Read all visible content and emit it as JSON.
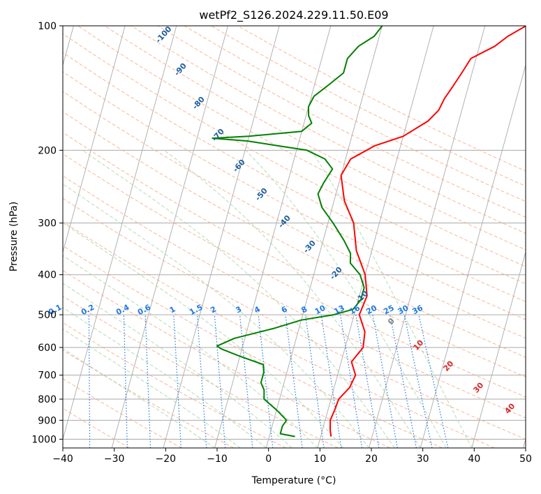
{
  "chart_data": {
    "type": "line",
    "title": "wetPf2_S126.2024.229.11.50.E09",
    "xlabel": "Temperature (°C)",
    "ylabel": "Pressure (hPa)",
    "xlim": [
      -40,
      50
    ],
    "ylim": [
      1050,
      100
    ],
    "y_scale": "log",
    "grid": true,
    "x_ticks": [
      -40,
      -30,
      -20,
      -10,
      0,
      10,
      20,
      30,
      40,
      50
    ],
    "x_tick_labels": [
      "−40",
      "−30",
      "−20",
      "−10",
      "0",
      "10",
      "20",
      "30",
      "40",
      "50"
    ],
    "y_ticks": [
      100,
      200,
      300,
      400,
      500,
      600,
      700,
      800,
      900,
      1000
    ],
    "y_tick_labels": [
      "100",
      "200",
      "300",
      "400",
      "500",
      "600",
      "700",
      "800",
      "900",
      "1000"
    ],
    "series": [
      {
        "color": "#ff0000",
        "points": [
          [
            12,
            985
          ],
          [
            11.5,
            950
          ],
          [
            11,
            900
          ],
          [
            11.3,
            850
          ],
          [
            11.5,
            800
          ],
          [
            13,
            750
          ],
          [
            13.5,
            700
          ],
          [
            12,
            650
          ],
          [
            13.5,
            600
          ],
          [
            13,
            550
          ],
          [
            11,
            500
          ],
          [
            11.5,
            450
          ],
          [
            10,
            400
          ],
          [
            7,
            350
          ],
          [
            5,
            300
          ],
          [
            2,
            265
          ],
          [
            0,
            230
          ],
          [
            1,
            210
          ],
          [
            5,
            195
          ],
          [
            10,
            185
          ],
          [
            14,
            170
          ],
          [
            15.5,
            160
          ],
          [
            16,
            150
          ],
          [
            17,
            140
          ],
          [
            18,
            130
          ],
          [
            19,
            120
          ],
          [
            23,
            112
          ],
          [
            25,
            106
          ],
          [
            28,
            100
          ]
        ]
      },
      {
        "color": "#008000",
        "points": [
          [
            5,
            985
          ],
          [
            2,
            970
          ],
          [
            2,
            930
          ],
          [
            2.5,
            900
          ],
          [
            0,
            850
          ],
          [
            -3,
            800
          ],
          [
            -3.5,
            760
          ],
          [
            -4.5,
            730
          ],
          [
            -4.5,
            690
          ],
          [
            -5,
            660
          ],
          [
            -10,
            630
          ],
          [
            -14,
            605
          ],
          [
            -15,
            595
          ],
          [
            -12,
            570
          ],
          [
            -5,
            540
          ],
          [
            0,
            515
          ],
          [
            6,
            500
          ],
          [
            9.5,
            485
          ],
          [
            10.5,
            460
          ],
          [
            10.5,
            430
          ],
          [
            9,
            400
          ],
          [
            6.5,
            375
          ],
          [
            6,
            355
          ],
          [
            4,
            330
          ],
          [
            1,
            300
          ],
          [
            -2,
            275
          ],
          [
            -3.5,
            255
          ],
          [
            -3,
            240
          ],
          [
            -2,
            222
          ],
          [
            -4,
            210
          ],
          [
            -8,
            200
          ],
          [
            -14,
            195
          ],
          [
            -20,
            190
          ],
          [
            -27,
            187
          ],
          [
            -20,
            185
          ],
          [
            -10,
            180
          ],
          [
            -8.5,
            172
          ],
          [
            -9.5,
            165
          ],
          [
            -10,
            157
          ],
          [
            -9.5,
            148
          ],
          [
            -7.5,
            140
          ],
          [
            -5,
            130
          ],
          [
            -5,
            120
          ],
          [
            -3.5,
            112
          ],
          [
            -1,
            106
          ],
          [
            0,
            100
          ]
        ]
      }
    ],
    "dry_adiabat_labels": [
      "-100",
      "-90",
      "-80",
      "-70",
      "-60",
      "-50",
      "-40",
      "-30",
      "-20",
      "-10",
      "0",
      "10",
      "20",
      "30",
      "40"
    ],
    "mixing_ratio_labels": [
      "0.1",
      "0.2",
      "0.4",
      "0.6",
      "1",
      "1.5",
      "2",
      "3",
      "4",
      "6",
      "8",
      "10",
      "13",
      "16",
      "20",
      "25",
      "30",
      "36"
    ],
    "mixing_ratio_values": [
      0.1,
      0.2,
      0.4,
      0.6,
      1,
      1.5,
      2,
      3,
      4,
      6,
      8,
      10,
      13,
      16,
      20,
      25,
      30,
      36
    ],
    "colors": {
      "temperature": "#ff0000",
      "dewpoint": "#008000",
      "isotherm": "#aaaaaa",
      "isobar": "#aaaaaa",
      "dry_adiabat": "#f4a582",
      "moist_adiabat": "#a6d5a6",
      "mixing_ratio": "#1f78e0",
      "cold_label": "#1f5f9f",
      "warm_label": "#d62728"
    }
  }
}
